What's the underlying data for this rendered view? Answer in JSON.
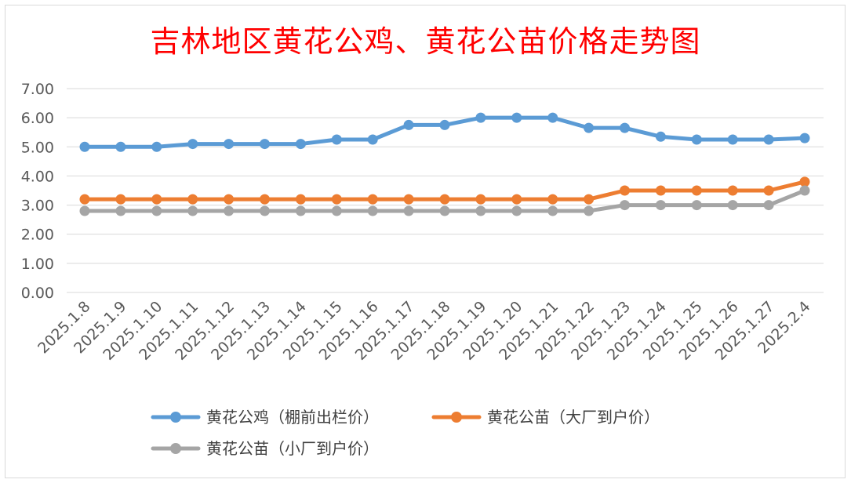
{
  "chart_data": {
    "type": "line",
    "title": "吉林地区黄花公鸡、黄花公苗价格走势图",
    "categories": [
      "2025.1.8",
      "2025.1.9",
      "2025.1.10",
      "2025.1.11",
      "2025.1.12",
      "2025.1.13",
      "2025.1.14",
      "2025.1.15",
      "2025.1.16",
      "2025.1.17",
      "2025.1.18",
      "2025.1.19",
      "2025.1.20",
      "2025.1.21",
      "2025.1.22",
      "2025.1.23",
      "2025.1.24",
      "2025.1.25",
      "2025.1.26",
      "2025.1.27",
      "2025.2.4"
    ],
    "ylim": [
      0,
      7
    ],
    "yticks": [
      "0.00",
      "1.00",
      "2.00",
      "3.00",
      "4.00",
      "5.00",
      "6.00",
      "7.00"
    ],
    "grid": true,
    "legend_position": "bottom",
    "series": [
      {
        "name": "黄花公鸡（棚前出栏价）",
        "color": "#5b9bd5",
        "values": [
          5.0,
          5.0,
          5.0,
          5.1,
          5.1,
          5.1,
          5.1,
          5.25,
          5.25,
          5.75,
          5.75,
          6.0,
          6.0,
          6.0,
          5.65,
          5.65,
          5.35,
          5.25,
          5.25,
          5.25,
          5.3
        ]
      },
      {
        "name": "黄花公苗（大厂到户价）",
        "color": "#ed7d31",
        "values": [
          3.2,
          3.2,
          3.2,
          3.2,
          3.2,
          3.2,
          3.2,
          3.2,
          3.2,
          3.2,
          3.2,
          3.2,
          3.2,
          3.2,
          3.2,
          3.5,
          3.5,
          3.5,
          3.5,
          3.5,
          3.8
        ]
      },
      {
        "name": "黄花公苗（小厂到户价）",
        "color": "#a5a5a5",
        "values": [
          2.8,
          2.8,
          2.8,
          2.8,
          2.8,
          2.8,
          2.8,
          2.8,
          2.8,
          2.8,
          2.8,
          2.8,
          2.8,
          2.8,
          2.8,
          3.0,
          3.0,
          3.0,
          3.0,
          3.0,
          3.5
        ]
      }
    ]
  }
}
